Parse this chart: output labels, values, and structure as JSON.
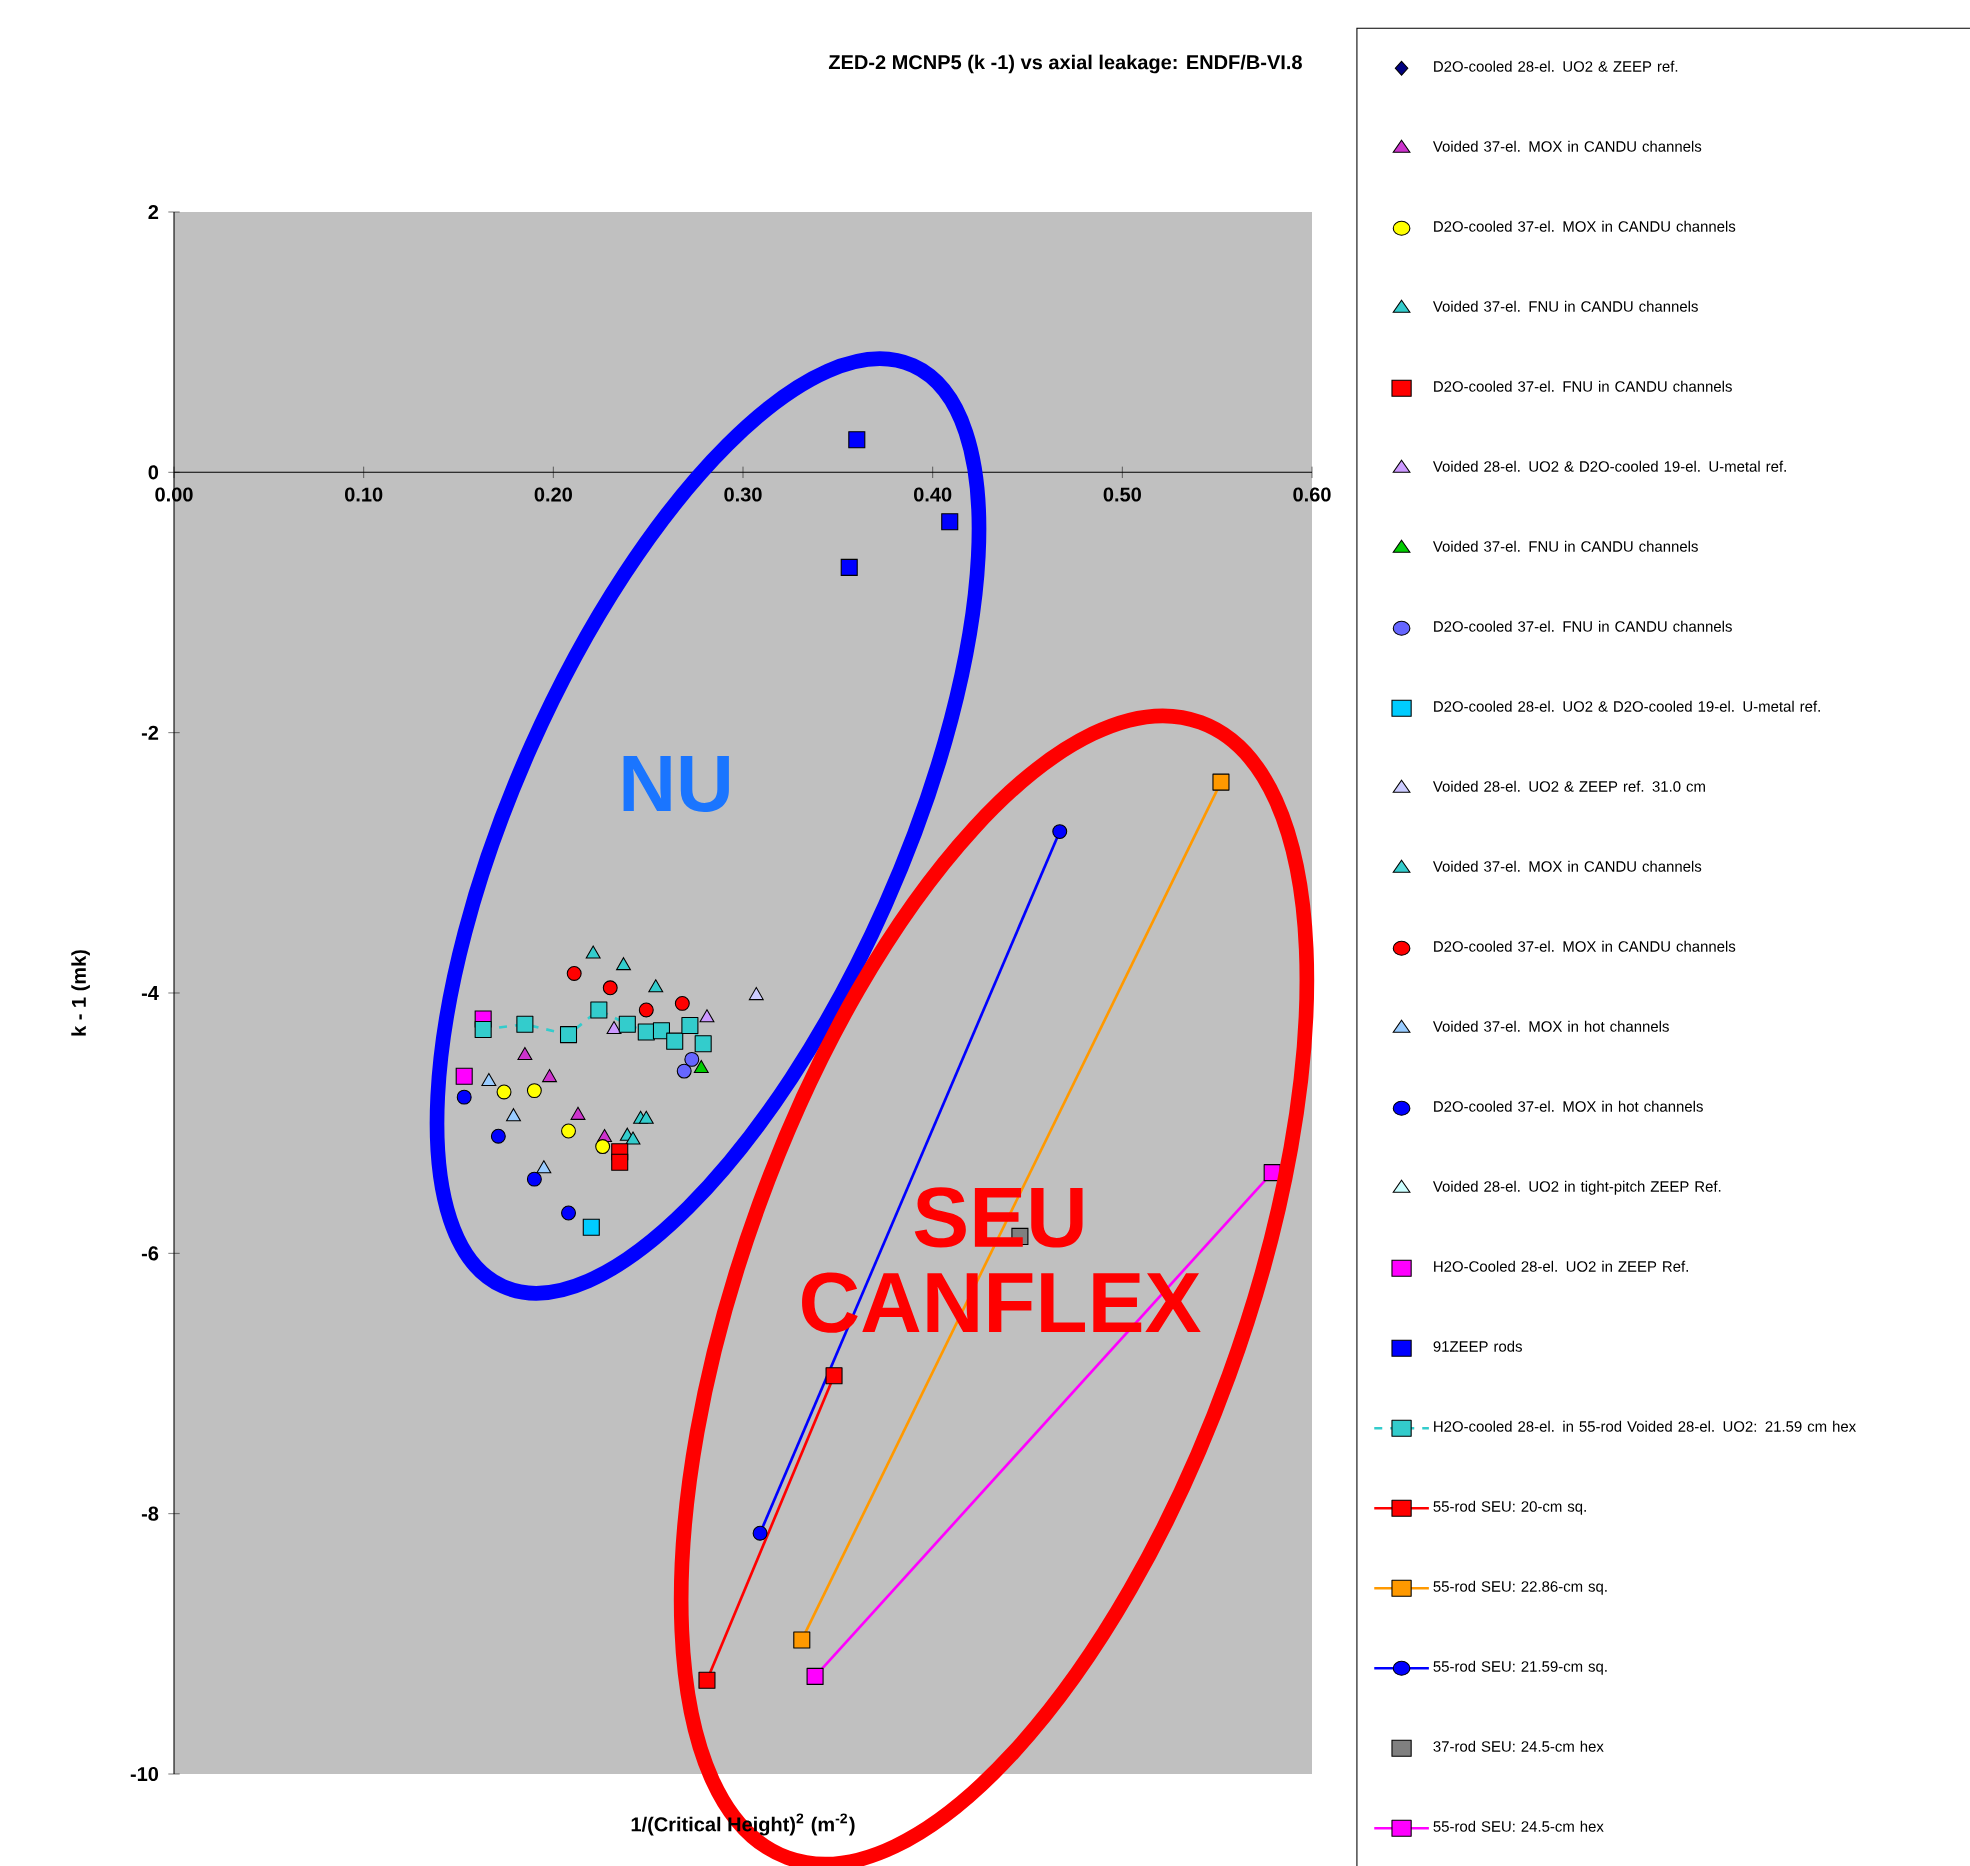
{
  "chart_data": {
    "type": "scatter",
    "title": "ZED-2 MCNP5 (k -1) vs axial leakage: ENDF/B-VI.8",
    "xlabel": "1/(Critical Height)$^{2}$ (m$^{-2}$)",
    "ylabel": "k - 1 (mk)",
    "xlim": [
      0,
      0.6
    ],
    "ylim": [
      -10,
      2
    ],
    "xticks": [
      {
        "value": 0,
        "label": "0.00"
      },
      {
        "value": 0.1,
        "label": "0.10"
      },
      {
        "value": 0.2,
        "label": "0.20"
      },
      {
        "value": 0.3,
        "label": "0.30"
      },
      {
        "value": 0.4,
        "label": "0.40"
      },
      {
        "value": 0.5,
        "label": "0.50"
      },
      {
        "value": 0.6,
        "label": "0.60"
      }
    ],
    "yticks": [
      -10,
      -8,
      -6,
      -4,
      -2,
      0,
      2
    ],
    "legend": "right",
    "annotations": [
      "NU",
      "SEU CANFLEX"
    ],
    "series": [
      {
        "name": "D2O-cooled 28-el. UO2 & ZEEP ref.",
        "color": "#000080",
        "marker": "diamond",
        "values": [
          null
        ]
      },
      {
        "name": "Voided 37-el. MOX in CANDU channels",
        "color": "#cc33cc",
        "marker": "triangle",
        "x": [
          0.185,
          0.198,
          0.213,
          0.227
        ],
        "values": [
          -4.48,
          -4.65,
          -4.94,
          -5.11
        ]
      },
      {
        "name": "D2O-cooled 37-el. MOX in CANDU channels",
        "color": "#ffff00",
        "marker": "circle",
        "x": [
          0.174,
          0.19,
          0.208,
          0.226
        ],
        "values": [
          -4.76,
          -4.75,
          -5.06,
          -5.18
        ]
      },
      {
        "name": "Voided 37-el. FNU in CANDU channels",
        "color": "#33cccc",
        "marker": "triangle",
        "x": [
          0.246,
          0.249,
          0.239,
          0.242
        ],
        "values": [
          -4.97,
          -4.97,
          -5.1,
          -5.13
        ]
      },
      {
        "name": "D2O-cooled 37-el. FNU in CANDU channels",
        "color": "#ff0000",
        "marker": "square",
        "x": [
          0.235,
          0.235
        ],
        "values": [
          -5.22,
          -5.3
        ]
      },
      {
        "name": "Voided 28-el. UO2 & D2O-cooled 19-el. U-metal ref.",
        "color": "#cc99ff",
        "marker": "triangle",
        "x": [
          0.232,
          0.281
        ],
        "values": [
          -4.28,
          -4.19
        ]
      },
      {
        "name": "Voided 37-el. FNU in CANDU channels",
        "color": "#00cc00",
        "marker": "triangle",
        "x": [
          0.278
        ],
        "values": [
          -4.58
        ]
      },
      {
        "name": "D2O-cooled 37-el. FNU in CANDU channels",
        "color": "#6666ff",
        "marker": "circle",
        "x": [
          0.269,
          0.273
        ],
        "values": [
          -4.6,
          -4.51
        ]
      },
      {
        "name": "D2O-cooled 28-el. UO2 & D2O-cooled 19-el. U-metal ref.",
        "color": "#00ccff",
        "marker": "square",
        "x": [
          0.22
        ],
        "values": [
          -5.8
        ]
      },
      {
        "name": "Voided 28-el. UO2 & ZEEP ref. 31.0 cm",
        "color": "#ccccff",
        "marker": "triangle",
        "x": [
          0.307
        ],
        "values": [
          -4.02
        ]
      },
      {
        "name": "Voided 37-el. MOX in CANDU channels",
        "color": "#33cccc",
        "marker": "triangle",
        "x": [
          0.221,
          0.237,
          0.254
        ],
        "values": [
          -3.7,
          -3.79,
          -3.96
        ]
      },
      {
        "name": "D2O-cooled 37-el. MOX in CANDU channels",
        "color": "#ff0000",
        "marker": "circle",
        "x": [
          0.211,
          0.23,
          0.249,
          0.268
        ],
        "values": [
          -3.85,
          -3.96,
          -4.13,
          -4.08
        ]
      },
      {
        "name": "Voided 37-el. MOX in hot channels",
        "color": "#99ccff",
        "marker": "triangle",
        "x": [
          0.166,
          0.179,
          0.195
        ],
        "values": [
          -4.68,
          -4.95,
          -5.35
        ]
      },
      {
        "name": "D2O-cooled 37-el. MOX in hot channels",
        "color": "#0000ff",
        "marker": "circle",
        "x": [
          0.153,
          0.171,
          0.19,
          0.208
        ],
        "values": [
          -4.8,
          -5.1,
          -5.43,
          -5.69
        ]
      },
      {
        "name": "Voided 28-el. UO2 in tight-pitch ZEEP Ref.",
        "color": "#ccffff",
        "marker": "triangle",
        "values": [
          null
        ]
      },
      {
        "name": "H2O-Cooled 28-el. UO2 in ZEEP Ref.",
        "color": "#ff00ff",
        "marker": "square",
        "x": [
          0.163,
          0.153
        ],
        "values": [
          -4.2,
          -4.64
        ]
      },
      {
        "name": "91ZEEP rods",
        "color": "#0000ff",
        "marker": "square",
        "x": [
          0.36,
          0.356,
          0.409
        ],
        "values": [
          0.25,
          -0.73,
          -0.38
        ]
      },
      {
        "name": "H2O-cooled 28-el. in 55-rod Voided 28-el. UO2: 21.59 cm hex",
        "type": "line",
        "line_style": "dashed",
        "color": "#33cccc",
        "marker": "square",
        "x": [
          0.163,
          0.185,
          0.208,
          0.224,
          0.239,
          0.249,
          0.257,
          0.264,
          0.272,
          0.279
        ],
        "values": [
          -4.28,
          -4.24,
          -4.32,
          -4.13,
          -4.24,
          -4.3,
          -4.29,
          -4.37,
          -4.25,
          -4.39
        ]
      },
      {
        "name": "55-rod SEU: 20-cm sq.",
        "type": "line",
        "color": "#ff0000",
        "marker": "square",
        "x": [
          0.281,
          0.348
        ],
        "values": [
          -9.28,
          -6.94
        ]
      },
      {
        "name": "55-rod SEU: 22.86-cm sq.",
        "type": "line",
        "color": "#ff9900",
        "marker": "square",
        "x": [
          0.331,
          0.552
        ],
        "values": [
          -8.97,
          -2.38
        ]
      },
      {
        "name": "55-rod SEU: 21.59-cm sq.",
        "type": "line",
        "color": "#0000ff",
        "marker": "circle",
        "x": [
          0.309,
          0.467
        ],
        "values": [
          -8.15,
          -2.76
        ]
      },
      {
        "name": "37-rod SEU: 24.5-cm hex",
        "color": "#808080",
        "marker": "square",
        "x": [
          0.446
        ],
        "values": [
          -5.87
        ]
      },
      {
        "name": "55-rod SEU: 24.5-cm hex",
        "type": "line",
        "color": "#ff00ff",
        "marker": "square",
        "x": [
          0.338,
          0.579
        ],
        "values": [
          -9.25,
          -5.38
        ]
      }
    ]
  }
}
